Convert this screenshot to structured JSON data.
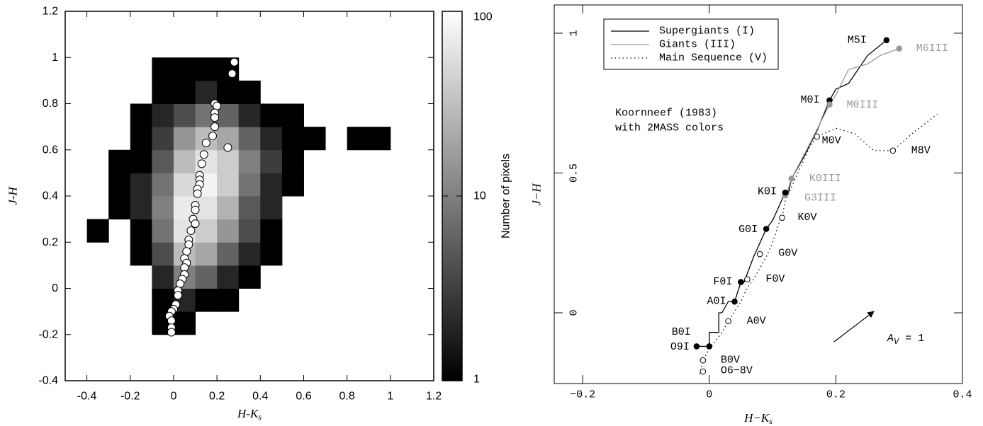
{
  "chart_data": [
    {
      "type": "heatmap",
      "xlabel": {
        "text": "H-K",
        "sub": "s"
      },
      "ylabel": "J-H",
      "xlim": [
        -0.5,
        1.2
      ],
      "ylim": [
        -0.4,
        1.2
      ],
      "xticks": [
        -0.4,
        -0.2,
        0,
        0.2,
        0.4,
        0.6,
        0.8,
        1,
        1.2
      ],
      "yticks": [
        -0.4,
        -0.2,
        0,
        0.2,
        0.4,
        0.6,
        0.8,
        1,
        1.2
      ],
      "xbins": [
        -0.4,
        -0.3,
        -0.2,
        -0.1,
        0,
        0.1,
        0.2,
        0.3,
        0.4,
        0.5,
        0.6,
        0.7,
        0.8,
        0.9,
        1.0
      ],
      "ybins": [
        -0.2,
        -0.1,
        0,
        0.1,
        0.2,
        0.3,
        0.4,
        0.5,
        0.6,
        0.7,
        0.8,
        0.9,
        1.0
      ],
      "z": [
        [
          null,
          null,
          null,
          1,
          1,
          null,
          null,
          null,
          null,
          null,
          null,
          null,
          null,
          null
        ],
        [
          null,
          null,
          null,
          1,
          2,
          1,
          1,
          null,
          null,
          null,
          null,
          null,
          null,
          null
        ],
        [
          null,
          null,
          null,
          2,
          10,
          6,
          2,
          1,
          null,
          null,
          null,
          null,
          null,
          null
        ],
        [
          null,
          null,
          1,
          4,
          30,
          20,
          6,
          2,
          1,
          null,
          null,
          null,
          null,
          null
        ],
        [
          1,
          null,
          1,
          8,
          60,
          40,
          15,
          4,
          1,
          null,
          null,
          null,
          null,
          null
        ],
        [
          null,
          1,
          2,
          10,
          70,
          60,
          25,
          5,
          2,
          null,
          null,
          null,
          null,
          null
        ],
        [
          null,
          1,
          2,
          8,
          50,
          80,
          40,
          8,
          2,
          1,
          null,
          null,
          null,
          null
        ],
        [
          null,
          1,
          1,
          5,
          30,
          60,
          40,
          10,
          3,
          1,
          null,
          null,
          null,
          null
        ],
        [
          null,
          null,
          1,
          3,
          15,
          30,
          20,
          6,
          2,
          1,
          1,
          null,
          1,
          1
        ],
        [
          null,
          null,
          1,
          2,
          4,
          8,
          6,
          2,
          1,
          1,
          null,
          null,
          null,
          null
        ],
        [
          null,
          null,
          null,
          1,
          1,
          2,
          1,
          1,
          null,
          null,
          null,
          null,
          null,
          null
        ],
        [
          null,
          null,
          null,
          1,
          1,
          1,
          1,
          null,
          null,
          null,
          null,
          null,
          null,
          null
        ]
      ],
      "colorbar": {
        "label": "Number of pixels",
        "lim": [
          1,
          100
        ],
        "ticks": [
          1,
          10,
          100
        ],
        "log": true,
        "colors": [
          "#000000",
          "#ffffff"
        ]
      },
      "overlay": {
        "type": "scatter",
        "color": "#ffffff",
        "edgecolor": "#000000",
        "x": [
          0.28,
          0.27,
          0.19,
          0.2,
          0.19,
          0.19,
          0.25,
          0.18,
          0.15,
          0.19,
          0.14,
          0.13,
          0.12,
          0.12,
          0.12,
          0.11,
          0.11,
          0.1,
          0.1,
          0.09,
          0.1,
          0.08,
          0.07,
          0.07,
          0.06,
          0.05,
          0.06,
          0.05,
          0.05,
          0.04,
          0.03,
          0.02,
          0.02,
          0.01,
          0.0,
          -0.01,
          -0.02,
          -0.01,
          -0.01,
          -0.01
        ],
        "y": [
          0.98,
          0.93,
          0.8,
          0.79,
          0.76,
          0.74,
          0.61,
          0.66,
          0.63,
          0.7,
          0.58,
          0.54,
          0.49,
          0.47,
          0.45,
          0.43,
          0.41,
          0.36,
          0.34,
          0.3,
          0.28,
          0.25,
          0.21,
          0.19,
          0.16,
          0.13,
          0.11,
          0.09,
          0.06,
          0.04,
          0.02,
          -0.01,
          -0.03,
          -0.07,
          -0.09,
          -0.1,
          -0.12,
          -0.14,
          -0.17,
          -0.19
        ]
      }
    },
    {
      "type": "line",
      "xlabel": {
        "text": "H−K",
        "sub": "s"
      },
      "ylabel": "J−H",
      "xlim": [
        -0.245,
        0.4
      ],
      "ylim": [
        -0.253,
        1.101
      ],
      "xticks": [
        {
          "value": -0.2,
          "label": "−0.2"
        },
        0,
        0.2,
        0.4
      ],
      "yticks": [
        0,
        0.5,
        1
      ],
      "legend": "upper left",
      "series": [
        {
          "name": "Supergiants (I)",
          "color": "#000000",
          "dash": "solid",
          "x": [
            -0.02,
            0,
            0,
            0.015,
            0.015,
            0.02,
            0.03,
            0.04,
            0.05,
            0.055,
            0.07,
            0.08,
            0.09,
            0.1,
            0.11,
            0.12,
            0.125,
            0.13,
            0.15,
            0.17,
            0.19,
            0.2,
            0.22,
            0.25,
            0.28
          ],
          "y": [
            -0.12,
            -0.12,
            -0.07,
            -0.07,
            0,
            0,
            0.04,
            0.04,
            0.11,
            0.11,
            0.2,
            0.25,
            0.3,
            0.33,
            0.38,
            0.43,
            0.43,
            0.48,
            0.56,
            0.65,
            0.76,
            0.8,
            0.82,
            0.92,
            0.975
          ]
        },
        {
          "name": "Giants (III)",
          "color": "#999999",
          "dash": "solid",
          "x": [
            0.12,
            0.13,
            0.16,
            0.19,
            0.2,
            0.22,
            0.25,
            0.27,
            0.3
          ],
          "y": [
            0.41,
            0.48,
            0.61,
            0.745,
            0.78,
            0.87,
            0.89,
            0.92,
            0.945
          ]
        },
        {
          "name": "Main Sequence (V)",
          "color": "#000000",
          "dash": "dotted",
          "x": [
            -0.015,
            -0.01,
            0,
            0.01,
            0.02,
            0.03,
            0.05,
            0.06,
            0.07,
            0.08,
            0.09,
            0.1,
            0.11,
            0.115,
            0.12,
            0.14,
            0.16,
            0.17,
            0.2,
            0.23,
            0.26,
            0.29,
            0.32,
            0.36
          ],
          "y": [
            -0.22,
            -0.17,
            -0.13,
            -0.1,
            -0.07,
            -0.03,
            0.04,
            0.09,
            0.12,
            0.16,
            0.2,
            0.25,
            0.32,
            0.34,
            0.4,
            0.5,
            0.6,
            0.63,
            0.66,
            0.64,
            0.58,
            0.58,
            0.64,
            0.71
          ]
        }
      ],
      "annotations": [
        {
          "label": "M5I",
          "x": 0.28,
          "y": 0.975,
          "marker": "filled",
          "color": "#000000"
        },
        {
          "label": "M6III",
          "x": 0.3,
          "y": 0.945,
          "marker": "filled",
          "color": "#999999"
        },
        {
          "label": "M0I",
          "x": 0.19,
          "y": 0.76,
          "marker": "filled",
          "color": "#000000"
        },
        {
          "label": "M0III",
          "x": 0.19,
          "y": 0.745,
          "marker": "filled",
          "color": "#999999"
        },
        {
          "label": "M0V",
          "x": 0.17,
          "y": 0.63,
          "marker": "open",
          "color": "#000000"
        },
        {
          "label": "M8V",
          "x": 0.29,
          "y": 0.58,
          "marker": "open",
          "color": "#000000"
        },
        {
          "label": "K0III",
          "x": 0.13,
          "y": 0.48,
          "marker": "filled",
          "color": "#999999"
        },
        {
          "label": "G3III",
          "x": 0.12,
          "y": 0.42,
          "marker": "filled",
          "color": "#999999"
        },
        {
          "label": "K0I",
          "x": 0.12,
          "y": 0.43,
          "marker": "filled",
          "color": "#000000"
        },
        {
          "label": "K0V",
          "x": 0.115,
          "y": 0.34,
          "marker": "open",
          "color": "#000000"
        },
        {
          "label": "G0I",
          "x": 0.09,
          "y": 0.3,
          "marker": "filled",
          "color": "#000000"
        },
        {
          "label": "G0V",
          "x": 0.08,
          "y": 0.21,
          "marker": "open",
          "color": "#000000"
        },
        {
          "label": "F0I",
          "x": 0.05,
          "y": 0.11,
          "marker": "filled",
          "color": "#000000"
        },
        {
          "label": "F0V",
          "x": 0.06,
          "y": 0.12,
          "marker": "open",
          "color": "#000000"
        },
        {
          "label": "A0I",
          "x": 0.04,
          "y": 0.04,
          "marker": "filled",
          "color": "#000000"
        },
        {
          "label": "A0V",
          "x": 0.03,
          "y": -0.03,
          "marker": "open",
          "color": "#000000"
        },
        {
          "label": "B0I",
          "x": 0,
          "y": -0.12,
          "marker": "filled",
          "color": "#000000"
        },
        {
          "label": "O9I",
          "x": -0.02,
          "y": -0.12,
          "marker": "filled",
          "color": "#000000"
        },
        {
          "label": "B0V",
          "x": -0.01,
          "y": -0.17,
          "marker": "open",
          "color": "#000000"
        },
        {
          "label": "O6−8V",
          "x": -0.01,
          "y": -0.21,
          "marker": "open",
          "color": "#000000"
        }
      ],
      "note": [
        "Koornneef (1983)",
        "with 2MASS colors"
      ],
      "arrow": {
        "x": [
          0.197,
          0.26
        ],
        "y": [
          -0.104,
          0.005
        ],
        "color": "#000000",
        "label": {
          "text": "A",
          "sub": "V",
          "rest": " = 1"
        }
      }
    }
  ]
}
